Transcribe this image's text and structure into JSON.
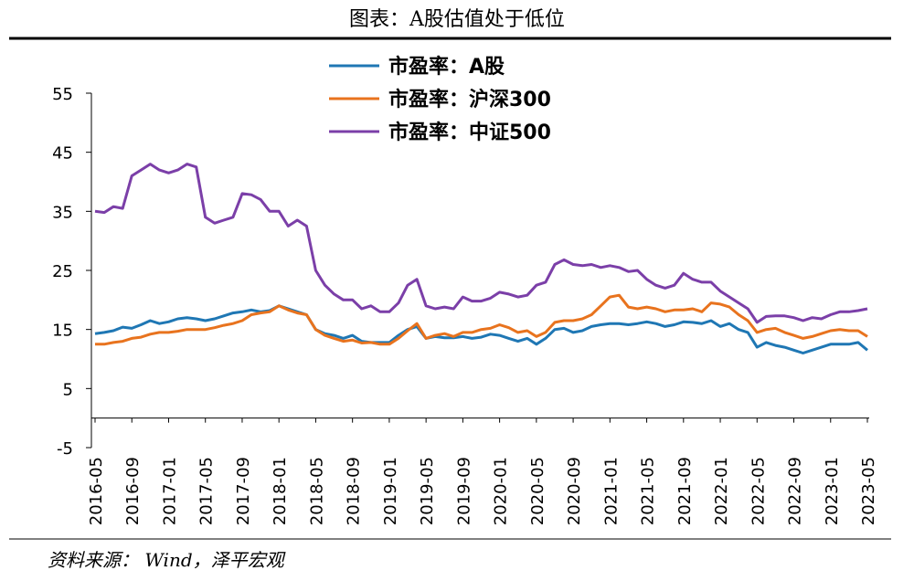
{
  "chart_data": {
    "type": "line",
    "title": "图表：A股估值处于低位",
    "source": "资料来源： Wind，泽平宏观",
    "categories": [
      "2016-05",
      null,
      null,
      null,
      "2016-09",
      null,
      null,
      null,
      "2017-01",
      null,
      null,
      null,
      "2017-05",
      null,
      null,
      null,
      "2017-09",
      null,
      null,
      null,
      "2018-01",
      null,
      null,
      null,
      "2018-05",
      null,
      null,
      null,
      "2018-09",
      null,
      null,
      null,
      "2019-01",
      null,
      null,
      null,
      "2019-05",
      null,
      null,
      null,
      "2019-09",
      null,
      null,
      null,
      "2020-01",
      null,
      null,
      null,
      "2020-05",
      null,
      null,
      null,
      "2020-09",
      null,
      null,
      null,
      "2021-01",
      null,
      null,
      null,
      "2021-05",
      null,
      null,
      null,
      "2021-09",
      null,
      null,
      null,
      "2022-01",
      null,
      null,
      null,
      "2022-05",
      null,
      null,
      null,
      "2022-09",
      null,
      null,
      null,
      "2023-01",
      null,
      null,
      null,
      "2023-05"
    ],
    "series": [
      {
        "name": "市盈率：A股",
        "color": "#1f77b4",
        "values": [
          14.3,
          14.5,
          14.8,
          15.4,
          15.2,
          15.8,
          16.5,
          16,
          16.3,
          16.8,
          17,
          16.8,
          16.5,
          16.8,
          17.3,
          17.8,
          18,
          18.3,
          18,
          18.2,
          19,
          18.5,
          18,
          17.5,
          15,
          14.3,
          14,
          13.5,
          14,
          13,
          12.8,
          12.8,
          12.8,
          14,
          15,
          15.5,
          13.5,
          13.8,
          13.6,
          13.6,
          13.8,
          13.5,
          13.7,
          14.2,
          14,
          13.5,
          13,
          13.5,
          12.5,
          13.5,
          15,
          15.2,
          14.5,
          14.8,
          15.5,
          15.8,
          16,
          16,
          15.8,
          16,
          16.3,
          16,
          15.5,
          15.8,
          16.3,
          16.2,
          16,
          16.5,
          15.5,
          16,
          15,
          14.5,
          12,
          12.8,
          12.3,
          12,
          11.5,
          11,
          11.5,
          12,
          12.5,
          12.5,
          12.5,
          12.8,
          11.5
        ]
      },
      {
        "name": "市盈率：沪深300",
        "color": "#e8731e",
        "values": [
          12.5,
          12.5,
          12.8,
          13,
          13.5,
          13.7,
          14.2,
          14.5,
          14.5,
          14.7,
          15,
          15,
          15,
          15.3,
          15.7,
          16,
          16.5,
          17.5,
          17.8,
          18,
          19,
          18.3,
          17.8,
          17.5,
          15,
          14,
          13.5,
          13,
          13.2,
          12.7,
          12.8,
          12.5,
          12.5,
          13.5,
          14.8,
          16,
          13.5,
          14,
          14.3,
          13.8,
          14.5,
          14.5,
          15,
          15.2,
          15.8,
          15.3,
          14.5,
          14.8,
          13.8,
          14.5,
          16.2,
          16.5,
          16.5,
          16.8,
          17.5,
          19,
          20.5,
          20.8,
          18.8,
          18.5,
          18.8,
          18.5,
          18,
          18.3,
          18.3,
          18.5,
          18,
          19.5,
          19.3,
          18.8,
          17.5,
          16.5,
          14.5,
          15,
          15.2,
          14.5,
          14,
          13.5,
          13.8,
          14.3,
          14.8,
          15,
          14.8,
          14.8,
          13.8
        ]
      },
      {
        "name": "市盈率：中证500",
        "color": "#7b3fa8",
        "values": [
          35,
          34.8,
          35.8,
          35.5,
          41,
          42,
          43,
          42,
          41.5,
          42,
          43,
          42.5,
          34,
          33,
          33.5,
          34,
          38,
          37.8,
          37,
          35,
          35,
          32.5,
          33.5,
          32.5,
          25,
          22.5,
          21,
          20,
          20,
          18.5,
          19,
          18,
          18,
          19.5,
          22.5,
          23.5,
          19,
          18.5,
          18.8,
          18.5,
          20.5,
          19.8,
          19.8,
          20.3,
          21.3,
          21,
          20.5,
          20.8,
          22.5,
          23,
          26,
          26.8,
          26,
          25.8,
          26,
          25.5,
          25.8,
          25.5,
          24.8,
          25,
          23.5,
          22.5,
          22,
          22.5,
          24.5,
          23.5,
          23,
          23,
          21.5,
          20.5,
          19.5,
          18.5,
          16.2,
          17.2,
          17.3,
          17.3,
          17,
          16.5,
          17,
          16.8,
          17.5,
          18,
          18,
          18.2,
          18.5
        ]
      }
    ],
    "ylim": [
      -5,
      55
    ],
    "yticks": [
      -5,
      5,
      15,
      25,
      35,
      45,
      55
    ],
    "grid": false
  }
}
